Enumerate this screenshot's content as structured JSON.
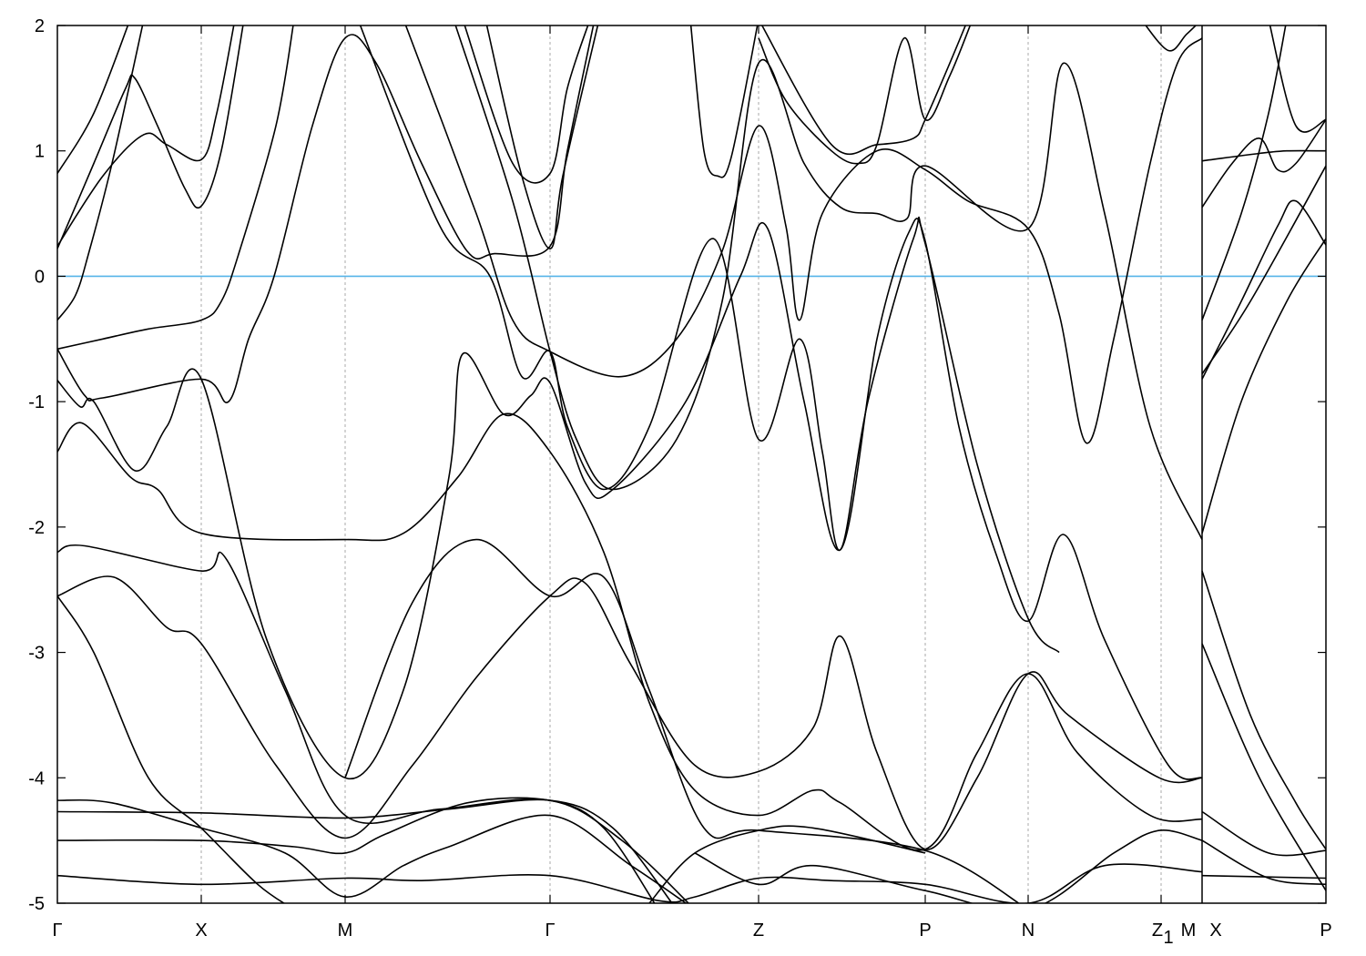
{
  "chart_data": {
    "type": "line",
    "title": "",
    "xlabel": "",
    "ylabel": "",
    "xlim": [
      0,
      13.93
    ],
    "ylim": [
      -5,
      2
    ],
    "yticks": [
      2,
      1,
      0,
      -1,
      -2,
      -3,
      -4,
      -5
    ],
    "grid": false,
    "fermi_level": 0,
    "colors": {
      "bands": "#000000",
      "fermi_line": "#56b4e9",
      "kpoint_lines": "#aaaaaa"
    },
    "kpoints": [
      {
        "label": "Γ",
        "sub": "",
        "k": 0
      },
      {
        "label": "X",
        "sub": "",
        "k": 1.58
      },
      {
        "label": "M",
        "sub": "",
        "k": 3.16
      },
      {
        "label": "Γ",
        "sub": "",
        "k": 5.41
      },
      {
        "label": "Z",
        "sub": "",
        "k": 7.7
      },
      {
        "label": "P",
        "sub": "",
        "k": 9.53
      },
      {
        "label": "N",
        "sub": "",
        "k": 10.66
      },
      {
        "label": "Z",
        "sub": "1",
        "k": 12.12
      },
      {
        "label": "M",
        "sub": "",
        "k": 12.57,
        "side": "left"
      },
      {
        "label": "X",
        "sub": "",
        "k": 12.57,
        "side": "right"
      },
      {
        "label": "P",
        "sub": "",
        "k": 13.93
      }
    ],
    "path_break_k": 12.57,
    "bands": [
      [
        [
          0,
          0.82
        ],
        [
          0.4,
          1.3
        ],
        [
          0.8,
          2.05
        ]
      ],
      [
        [
          0,
          0.22
        ],
        [
          0.4,
          0.9
        ],
        [
          0.75,
          1.5
        ],
        [
          0.85,
          1.58
        ],
        [
          1.1,
          1.2
        ],
        [
          1.4,
          0.7
        ],
        [
          1.58,
          0.56
        ],
        [
          1.8,
          1.0
        ],
        [
          2.05,
          2.05
        ]
      ],
      [
        [
          0,
          0.24
        ],
        [
          0.5,
          0.8
        ],
        [
          0.95,
          1.13
        ],
        [
          1.2,
          1.05
        ],
        [
          1.58,
          0.93
        ],
        [
          1.75,
          1.3
        ],
        [
          1.95,
          2.05
        ]
      ],
      [
        [
          0,
          -0.35
        ],
        [
          0.2,
          -0.15
        ],
        [
          0.35,
          0.2
        ],
        [
          0.6,
          0.9
        ],
        [
          0.95,
          2.05
        ]
      ],
      [
        [
          0,
          -0.58
        ],
        [
          0.5,
          -0.5
        ],
        [
          1.0,
          -0.42
        ],
        [
          1.58,
          -0.35
        ],
        [
          1.8,
          -0.2
        ],
        [
          2.0,
          0.2
        ],
        [
          2.4,
          1.2
        ],
        [
          2.6,
          2.05
        ]
      ],
      [
        [
          0,
          -0.58
        ],
        [
          0.3,
          -0.95
        ],
        [
          0.5,
          -0.97
        ],
        [
          1.58,
          -0.82
        ],
        [
          1.88,
          -1.0
        ],
        [
          2.1,
          -0.5
        ],
        [
          2.38,
          0
        ],
        [
          2.8,
          1.2
        ],
        [
          3.16,
          1.9
        ],
        [
          3.5,
          1.7
        ],
        [
          4.0,
          0.9
        ],
        [
          4.5,
          0.2
        ],
        [
          4.8,
          0.18
        ],
        [
          5.41,
          0.24
        ],
        [
          5.6,
          1.0
        ],
        [
          5.9,
          2.05
        ]
      ],
      [
        [
          0,
          -0.83
        ],
        [
          0.25,
          -1.04
        ],
        [
          0.4,
          -1.0
        ],
        [
          0.85,
          -1.55
        ],
        [
          1.2,
          -1.2
        ],
        [
          1.58,
          -0.82
        ],
        [
          2.3,
          -2.9
        ],
        [
          3.16,
          -4.0
        ],
        [
          3.8,
          -3.3
        ],
        [
          4.3,
          -1.6
        ],
        [
          4.45,
          -0.62
        ],
        [
          4.9,
          -1.1
        ],
        [
          5.2,
          -0.95
        ],
        [
          5.41,
          -0.85
        ],
        [
          5.8,
          -1.65
        ],
        [
          6.1,
          -1.7
        ],
        [
          6.9,
          -1.0
        ],
        [
          7.5,
          0
        ],
        [
          7.8,
          0.38
        ],
        [
          8.2,
          -1.0
        ],
        [
          8.6,
          -2.18
        ],
        [
          9.0,
          -0.5
        ],
        [
          9.35,
          0.35
        ],
        [
          9.53,
          0.28
        ],
        [
          9.9,
          -1.2
        ],
        [
          10.3,
          -2.2
        ],
        [
          10.66,
          -2.75
        ],
        [
          11.05,
          -2.06
        ],
        [
          11.5,
          -2.9
        ],
        [
          12.2,
          -3.9
        ],
        [
          12.57,
          -4.0
        ]
      ],
      [
        [
          0,
          -1.4
        ],
        [
          0.27,
          -1.17
        ],
        [
          0.8,
          -1.6
        ],
        [
          1.1,
          -1.7
        ],
        [
          1.58,
          -2.05
        ],
        [
          3.16,
          -2.1
        ],
        [
          3.8,
          -2.05
        ],
        [
          4.4,
          -1.6
        ],
        [
          4.9,
          -1.1
        ],
        [
          5.41,
          -1.4
        ],
        [
          6.0,
          -2.2
        ],
        [
          6.5,
          -3.4
        ],
        [
          7.0,
          -4.1
        ],
        [
          7.7,
          -4.3
        ],
        [
          8.3,
          -4.1
        ],
        [
          8.6,
          -4.2
        ],
        [
          9.53,
          -4.57
        ],
        [
          10.1,
          -3.8
        ],
        [
          10.66,
          -3.17
        ],
        [
          11.2,
          -3.8
        ],
        [
          12.0,
          -4.3
        ],
        [
          12.57,
          -4.33
        ]
      ],
      [
        [
          3.3,
          2.05
        ],
        [
          4.2,
          0.4
        ],
        [
          4.75,
          0
        ],
        [
          5.1,
          -0.8
        ],
        [
          5.41,
          -0.6
        ],
        [
          5.6,
          -1.2
        ],
        [
          6.0,
          -1.7
        ],
        [
          6.5,
          -1.2
        ],
        [
          7.2,
          0.3
        ],
        [
          7.7,
          -1.3
        ],
        [
          8.15,
          -0.5
        ],
        [
          8.4,
          -1.4
        ],
        [
          8.6,
          -2.18
        ],
        [
          8.9,
          -1.0
        ],
        [
          9.4,
          0.3
        ],
        [
          9.53,
          0.26
        ],
        [
          10.1,
          -1.5
        ],
        [
          10.66,
          -2.73
        ],
        [
          11.0,
          -3.0
        ]
      ],
      [
        [
          3.8,
          2.05
        ],
        [
          4.6,
          0.5
        ],
        [
          5.0,
          -0.35
        ],
        [
          5.41,
          -0.6
        ],
        [
          6.2,
          -0.8
        ],
        [
          6.8,
          -0.5
        ],
        [
          7.3,
          0.2
        ],
        [
          7.7,
          1.2
        ],
        [
          8.0,
          0.4
        ],
        [
          8.15,
          -0.35
        ],
        [
          8.4,
          0.5
        ],
        [
          9.0,
          1.0
        ],
        [
          9.53,
          0.85
        ],
        [
          10.0,
          0.6
        ],
        [
          10.66,
          0.38
        ],
        [
          11.0,
          -0.3
        ],
        [
          11.3,
          -1.33
        ],
        [
          11.6,
          -0.5
        ],
        [
          12.0,
          0.9
        ],
        [
          12.3,
          1.7
        ],
        [
          12.57,
          1.9
        ]
      ],
      [
        [
          4.35,
          2.05
        ],
        [
          5.0,
          0.6
        ],
        [
          5.41,
          -0.6
        ],
        [
          5.7,
          -1.3
        ],
        [
          6.1,
          -1.7
        ],
        [
          6.8,
          -1.3
        ],
        [
          7.3,
          -0.2
        ],
        [
          7.7,
          1.7
        ],
        [
          8.2,
          0.9
        ],
        [
          8.6,
          0.55
        ],
        [
          9.0,
          0.5
        ],
        [
          9.33,
          0.46
        ],
        [
          9.53,
          0.88
        ],
        [
          10.66,
          0.38
        ],
        [
          11.05,
          1.7
        ],
        [
          11.5,
          0.5
        ],
        [
          12.0,
          -1.2
        ],
        [
          12.57,
          -2.1
        ]
      ],
      [
        [
          4.45,
          2.05
        ],
        [
          5.0,
          0.9
        ],
        [
          5.41,
          0.82
        ],
        [
          5.6,
          1.5
        ],
        [
          5.85,
          2.05
        ]
      ],
      [
        [
          4.7,
          2.05
        ],
        [
          5.1,
          0.8
        ],
        [
          5.41,
          0.22
        ],
        [
          5.55,
          0.8
        ],
        [
          5.95,
          2.05
        ]
      ],
      [
        [
          6.95,
          2.05
        ],
        [
          7.1,
          1.0
        ],
        [
          7.25,
          0.8
        ],
        [
          7.4,
          0.95
        ],
        [
          7.7,
          2.05
        ]
      ],
      [
        [
          7.7,
          1.9
        ],
        [
          8.0,
          1.4
        ],
        [
          8.5,
          1.0
        ],
        [
          8.8,
          0.9
        ],
        [
          9.0,
          1.05
        ],
        [
          9.3,
          1.9
        ],
        [
          9.53,
          1.25
        ],
        [
          9.8,
          1.6
        ],
        [
          10.05,
          2.05
        ]
      ],
      [
        [
          7.7,
          2.05
        ],
        [
          8.5,
          1.05
        ],
        [
          9.0,
          1.05
        ],
        [
          9.4,
          1.1
        ],
        [
          9.53,
          1.25
        ],
        [
          9.8,
          1.7
        ],
        [
          10.0,
          2.05
        ]
      ],
      [
        [
          11.9,
          2.05
        ],
        [
          12.2,
          1.8
        ],
        [
          12.4,
          1.93
        ],
        [
          12.57,
          2.05
        ]
      ],
      [
        [
          0,
          -2.2
        ],
        [
          0.3,
          -2.15
        ],
        [
          1.58,
          -2.35
        ],
        [
          1.85,
          -2.25
        ],
        [
          2.5,
          -3.3
        ],
        [
          3.16,
          -4.3
        ],
        [
          4.2,
          -4.25
        ],
        [
          5.41,
          -4.18
        ],
        [
          6.2,
          -4.5
        ],
        [
          7.0,
          -5.05
        ]
      ],
      [
        [
          0,
          -2.55
        ],
        [
          0.62,
          -2.4
        ],
        [
          1.2,
          -2.8
        ],
        [
          1.58,
          -2.93
        ],
        [
          2.4,
          -3.9
        ],
        [
          3.16,
          -4.48
        ],
        [
          3.9,
          -3.9
        ],
        [
          4.6,
          -3.2
        ],
        [
          5.41,
          -2.55
        ],
        [
          5.8,
          -2.45
        ],
        [
          6.3,
          -3.1
        ],
        [
          7.0,
          -3.9
        ],
        [
          7.7,
          -3.95
        ],
        [
          8.3,
          -3.6
        ],
        [
          8.6,
          -2.87
        ],
        [
          9.0,
          -3.8
        ],
        [
          9.53,
          -4.57
        ],
        [
          10.1,
          -4.0
        ],
        [
          10.66,
          -3.17
        ],
        [
          11.1,
          -3.5
        ],
        [
          12.1,
          -4.0
        ],
        [
          12.57,
          -4.0
        ]
      ],
      [
        [
          0,
          -2.55
        ],
        [
          0.4,
          -3.0
        ],
        [
          1.0,
          -4.0
        ],
        [
          1.58,
          -4.4
        ],
        [
          2.2,
          -4.85
        ],
        [
          2.6,
          -5.05
        ]
      ],
      [
        [
          3.16,
          -4.0
        ],
        [
          3.9,
          -2.6
        ],
        [
          4.6,
          -2.1
        ],
        [
          5.41,
          -2.55
        ],
        [
          6.0,
          -2.4
        ],
        [
          6.5,
          -3.3
        ],
        [
          7.1,
          -4.4
        ],
        [
          7.7,
          -4.42
        ],
        [
          9.53,
          -4.58
        ],
        [
          10.66,
          -5.05
        ]
      ],
      [
        [
          0,
          -4.18
        ],
        [
          0.6,
          -4.2
        ],
        [
          1.58,
          -4.4
        ],
        [
          2.5,
          -4.6
        ],
        [
          3.16,
          -4.95
        ],
        [
          3.8,
          -4.7
        ],
        [
          4.3,
          -4.55
        ],
        [
          5.41,
          -4.3
        ],
        [
          6.3,
          -4.7
        ],
        [
          7.0,
          -5.05
        ]
      ],
      [
        [
          0,
          -4.27
        ],
        [
          1.58,
          -4.28
        ],
        [
          3.16,
          -4.32
        ],
        [
          4.3,
          -4.25
        ],
        [
          5.41,
          -4.18
        ],
        [
          6.1,
          -4.4
        ],
        [
          6.8,
          -5.05
        ]
      ],
      [
        [
          0,
          -4.5
        ],
        [
          1.58,
          -4.5
        ],
        [
          2.6,
          -4.55
        ],
        [
          3.16,
          -4.6
        ],
        [
          3.6,
          -4.45
        ],
        [
          4.5,
          -4.2
        ],
        [
          5.41,
          -4.18
        ],
        [
          6.0,
          -4.4
        ],
        [
          6.6,
          -5.05
        ]
      ],
      [
        [
          0,
          -4.78
        ],
        [
          1.58,
          -4.85
        ],
        [
          3.16,
          -4.8
        ],
        [
          4.0,
          -4.82
        ],
        [
          5.41,
          -4.78
        ],
        [
          6.6,
          -4.98
        ],
        [
          7.0,
          -4.95
        ],
        [
          7.7,
          -4.8
        ],
        [
          8.5,
          -4.82
        ],
        [
          9.53,
          -4.85
        ],
        [
          10.66,
          -5.0
        ],
        [
          11.5,
          -4.7
        ],
        [
          12.57,
          -4.75
        ]
      ],
      [
        [
          6.5,
          -5.0
        ],
        [
          7.0,
          -4.6
        ],
        [
          7.7,
          -4.42
        ],
        [
          8.3,
          -4.4
        ],
        [
          9.53,
          -4.6
        ]
      ],
      [
        [
          7.0,
          -4.6
        ],
        [
          7.7,
          -4.85
        ],
        [
          8.3,
          -4.7
        ],
        [
          9.53,
          -4.9
        ],
        [
          10.66,
          -5.05
        ],
        [
          11.6,
          -4.6
        ],
        [
          12.1,
          -4.42
        ],
        [
          12.57,
          -4.5
        ]
      ],
      [
        [
          12.57,
          0.92
        ],
        [
          13.2,
          0.98
        ],
        [
          13.5,
          1.0
        ],
        [
          13.93,
          1.0
        ]
      ],
      [
        [
          12.57,
          0.55
        ],
        [
          12.9,
          0.9
        ],
        [
          13.2,
          1.1
        ],
        [
          13.4,
          0.85
        ],
        [
          13.6,
          0.9
        ],
        [
          13.93,
          1.25
        ]
      ],
      [
        [
          12.57,
          -0.35
        ],
        [
          13.0,
          0.5
        ],
        [
          13.3,
          1.3
        ],
        [
          13.5,
          2.05
        ]
      ],
      [
        [
          13.3,
          2.05
        ],
        [
          13.6,
          1.2
        ],
        [
          13.93,
          1.25
        ]
      ],
      [
        [
          12.57,
          -0.82
        ],
        [
          13.0,
          -0.2
        ],
        [
          13.4,
          0.4
        ],
        [
          13.6,
          0.6
        ],
        [
          13.93,
          0.25
        ]
      ],
      [
        [
          12.57,
          -0.78
        ],
        [
          13.1,
          -0.2
        ],
        [
          13.93,
          0.88
        ]
      ],
      [
        [
          12.57,
          -2.05
        ],
        [
          13.0,
          -1.0
        ],
        [
          13.5,
          -0.2
        ],
        [
          13.93,
          0.3
        ]
      ],
      [
        [
          12.57,
          -2.35
        ],
        [
          13.1,
          -3.5
        ],
        [
          13.6,
          -4.2
        ],
        [
          13.93,
          -4.57
        ]
      ],
      [
        [
          12.57,
          -2.93
        ],
        [
          13.2,
          -4.0
        ],
        [
          13.93,
          -4.9
        ]
      ],
      [
        [
          12.57,
          -4.27
        ],
        [
          13.3,
          -4.6
        ],
        [
          13.93,
          -4.58
        ]
      ],
      [
        [
          12.57,
          -4.5
        ],
        [
          13.3,
          -4.8
        ],
        [
          13.93,
          -4.85
        ]
      ],
      [
        [
          12.57,
          -4.78
        ],
        [
          13.93,
          -4.8
        ]
      ]
    ]
  }
}
